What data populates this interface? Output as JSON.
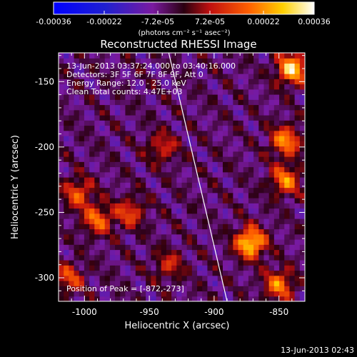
{
  "chart_data": {
    "type": "heatmap",
    "title": "Reconstructed RHESSI Image",
    "xlabel": "Heliocentric X (arcsec)",
    "ylabel": "Heliocentric Y (arcsec)",
    "xlim": [
      -1020,
      -830
    ],
    "ylim": [
      -318,
      -128
    ],
    "x_ticks": [
      "-1000",
      "-950",
      "-900",
      "-850"
    ],
    "x_tick_values": [
      -1000,
      -950,
      -900,
      -850
    ],
    "y_ticks": [
      "-150",
      "-200",
      "-250",
      "-300"
    ],
    "y_tick_values": [
      -150,
      -200,
      -250,
      -300
    ],
    "colorbar": {
      "ticks": [
        "-0.00036",
        "-0.00022",
        "-7.2e-05",
        "7.2e-05",
        "0.00022",
        "0.00036"
      ],
      "tick_values": [
        -0.00036,
        -0.00022,
        -7.2e-05,
        7.2e-05,
        0.00022,
        0.00036
      ],
      "range": [
        -0.00036,
        0.00036
      ],
      "units_label": "(photons cm⁻² s⁻¹ asec⁻²)",
      "colormap": "blue-purple-red-yellow-white"
    },
    "annotations": {
      "time_range": "13-Jun-2013 03:37:24.000 to 03:40:16.000",
      "detectors": "Detectors: 3F 5F 6F 7F 8F 9F, Att 0",
      "energy": "Energy Range: 12.0 - 25.0 keV",
      "method": "Clean     Total counts: 4.47E+03",
      "peak": "Position of Peak = [-872,-273]"
    },
    "peak": {
      "x": -872,
      "y": -273
    },
    "limb_line": [
      [
        -935,
        -128
      ],
      [
        -890,
        -318
      ]
    ],
    "hot_spots": [
      {
        "x": -872,
        "y": -273,
        "value": 0.00036
      },
      {
        "x": -840,
        "y": -140,
        "value": 0.00034
      },
      {
        "x": -845,
        "y": -195,
        "value": 0.00026
      },
      {
        "x": -845,
        "y": -225,
        "value": 0.00024
      },
      {
        "x": -850,
        "y": -305,
        "value": 0.00024
      },
      {
        "x": -990,
        "y": -255,
        "value": 0.00022
      },
      {
        "x": -1005,
        "y": -235,
        "value": 0.0002
      },
      {
        "x": -965,
        "y": -250,
        "value": 0.00018
      },
      {
        "x": -940,
        "y": -200,
        "value": 0.00015
      },
      {
        "x": -1012,
        "y": -300,
        "value": 0.00018
      },
      {
        "x": -935,
        "y": -290,
        "value": 0.00014
      }
    ]
  },
  "timestamp": "13-Jun-2013 02:43"
}
